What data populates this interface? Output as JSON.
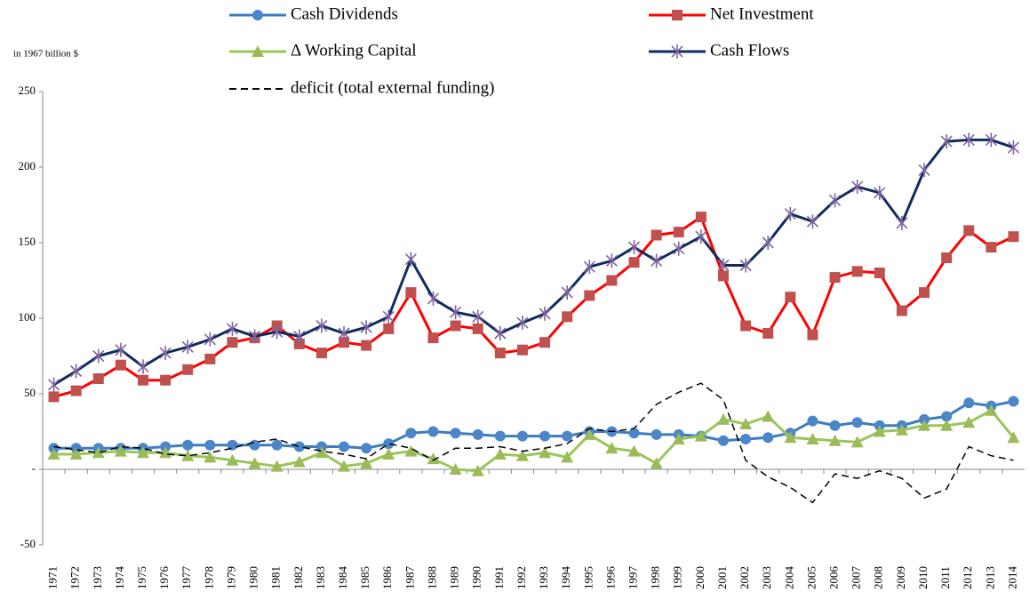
{
  "chart_data": {
    "type": "line",
    "y_axis_label": "in 1967 billion $",
    "categories": [
      "1971",
      "1972",
      "1973",
      "1974",
      "1975",
      "1976",
      "1977",
      "1978",
      "1979",
      "1980",
      "1981",
      "1982",
      "1983",
      "1984",
      "1985",
      "1986",
      "1987",
      "1988",
      "1989",
      "1990",
      "1991",
      "1992",
      "1993",
      "1994",
      "1995",
      "1996",
      "1997",
      "1998",
      "1999",
      "2000",
      "2001",
      "2002",
      "2003",
      "2004",
      "2005",
      "2006",
      "2007",
      "2008",
      "2009",
      "2010",
      "2011",
      "2012",
      "2013",
      "2014"
    ],
    "ylim": [
      -50,
      250
    ],
    "yticks": [
      -50,
      {
        "value": 0,
        "label": "-"
      },
      50,
      100,
      150,
      200,
      250
    ],
    "series": [
      {
        "name": "Cash Dividends",
        "color": "#3c7cc0",
        "marker": "circle",
        "marker_color": "#4a86c8",
        "values": [
          14,
          14,
          14,
          14,
          14,
          15,
          16,
          16,
          16,
          16,
          16,
          15,
          15,
          15,
          14,
          17,
          24,
          25,
          24,
          23,
          22,
          22,
          22,
          22,
          25,
          25,
          24,
          23,
          23,
          22,
          19,
          20,
          21,
          24,
          32,
          29,
          31,
          29,
          29,
          33,
          35,
          44,
          42,
          45
        ]
      },
      {
        "name": "Net Investment",
        "color": "#ff0000",
        "marker": "square",
        "marker_color": "#c0504d",
        "values": [
          48,
          52,
          60,
          69,
          59,
          59,
          66,
          73,
          84,
          87,
          95,
          83,
          77,
          84,
          82,
          93,
          117,
          87,
          95,
          93,
          77,
          79,
          84,
          101,
          115,
          125,
          137,
          155,
          157,
          167,
          128,
          95,
          90,
          114,
          89,
          127,
          131,
          130,
          105,
          117,
          140,
          158,
          147,
          154
        ]
      },
      {
        "name": "Δ Working Capital",
        "color": "#9bc55a",
        "marker": "triangle",
        "marker_color": "#9bbb59",
        "values": [
          10,
          10,
          11,
          12,
          11,
          11,
          9,
          8,
          6,
          4,
          2,
          5,
          11,
          2,
          4,
          10,
          12,
          7,
          0,
          -1,
          10,
          9,
          11,
          8,
          23,
          14,
          12,
          4,
          20,
          22,
          33,
          30,
          35,
          21,
          20,
          19,
          18,
          25,
          26,
          29,
          29,
          31,
          39,
          21
        ]
      },
      {
        "name": "Cash Flows",
        "color": "#0f2c5c",
        "marker": "star",
        "marker_color": "#8064a2",
        "values": [
          56,
          65,
          75,
          79,
          68,
          77,
          81,
          86,
          93,
          88,
          91,
          88,
          95,
          90,
          94,
          101,
          139,
          113,
          104,
          101,
          90,
          97,
          103,
          117,
          134,
          138,
          147,
          138,
          146,
          154,
          135,
          135,
          150,
          169,
          164,
          178,
          187,
          183,
          163,
          198,
          217,
          218,
          218,
          213
        ]
      },
      {
        "name": "deficit (total external funding)",
        "color": "#000000",
        "dashed": true,
        "values": [
          15,
          13,
          11,
          15,
          14,
          10,
          9,
          11,
          14,
          18,
          20,
          15,
          12,
          10,
          7,
          17,
          14,
          6,
          14,
          14,
          15,
          12,
          14,
          17,
          27,
          25,
          27,
          43,
          51,
          57,
          46,
          6,
          -5,
          -12,
          -22,
          -3,
          -6,
          -1,
          -6,
          -19,
          -13,
          15,
          9,
          6
        ]
      }
    ]
  }
}
